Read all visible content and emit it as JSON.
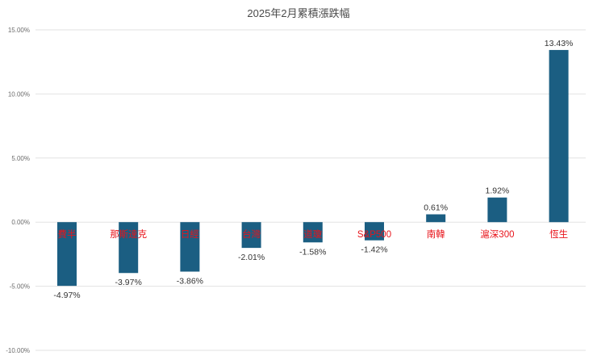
{
  "chart_data": {
    "type": "bar",
    "title": "2025年2月累積漲跌幅",
    "xlabel": "",
    "ylabel": "",
    "categories": [
      "費半",
      "那斯達克",
      "日經",
      "台灣",
      "道瓊",
      "S&P500",
      "南韓",
      "滬深300",
      "恆生"
    ],
    "values": [
      -4.97,
      -3.97,
      -3.86,
      -2.01,
      -1.58,
      -1.42,
      0.61,
      1.92,
      13.43
    ],
    "data_labels": [
      "-4.97%",
      "-3.97%",
      "-3.86%",
      "-2.01%",
      "-1.58%",
      "-1.42%",
      "0.61%",
      "1.92%",
      "13.43%"
    ],
    "ylim": [
      -10,
      15
    ],
    "yticks": [
      -10,
      -5,
      0,
      5,
      10,
      15
    ],
    "ytick_labels": [
      "-10.00%",
      "-5.00%",
      "0.00%",
      "5.00%",
      "10.00%",
      "15.00%"
    ],
    "grid": true,
    "legend": "none",
    "colors": {
      "bar": "#1b5e82",
      "category_label": "#e8141b",
      "grid": "#e2e2e2",
      "title": "#4a4a4a"
    }
  }
}
